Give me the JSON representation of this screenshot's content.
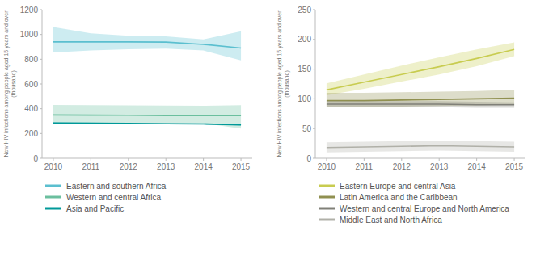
{
  "chart_data": [
    {
      "type": "line",
      "y_label": "New HIV infections among people aged 15 years and over\n(thousand)",
      "x": [
        2010,
        2011,
        2012,
        2013,
        2014,
        2015
      ],
      "xlim": [
        2009.7,
        2015.3
      ],
      "xticks": [
        2010,
        2011,
        2012,
        2013,
        2014,
        2015
      ],
      "ylim": [
        0,
        1200
      ],
      "yticks": [
        0,
        200,
        400,
        600,
        800,
        1000,
        1200
      ],
      "grid": false,
      "legend": "bottom",
      "series": [
        {
          "name": "Eastern and southern Africa",
          "color": "#5bbfcf",
          "values": [
            940,
            940,
            940,
            938,
            920,
            890
          ],
          "upper": [
            1060,
            1010,
            990,
            985,
            960,
            1025
          ],
          "lower": [
            855,
            870,
            880,
            885,
            870,
            790
          ]
        },
        {
          "name": "Western and central Africa",
          "color": "#6bbf9e",
          "values": [
            350,
            348,
            347,
            345,
            344,
            345
          ],
          "upper": [
            430,
            428,
            427,
            425,
            424,
            428
          ],
          "lower": [
            285,
            285,
            285,
            282,
            282,
            240
          ]
        },
        {
          "name": "Asia and Pacific",
          "color": "#009999",
          "values": [
            285,
            283,
            281,
            279,
            277,
            270
          ],
          "upper": [
            290,
            288,
            286,
            284,
            282,
            275
          ],
          "lower": [
            280,
            278,
            276,
            274,
            272,
            265
          ]
        }
      ]
    },
    {
      "type": "line",
      "y_label": "New HIV infections among people aged 15 years and over\n(thousand)",
      "x": [
        2010,
        2011,
        2012,
        2013,
        2014,
        2015
      ],
      "xlim": [
        2009.7,
        2015.3
      ],
      "xticks": [
        2010,
        2011,
        2012,
        2013,
        2014,
        2015
      ],
      "ylim": [
        0,
        250
      ],
      "yticks": [
        0,
        50,
        100,
        150,
        200,
        250
      ],
      "grid": false,
      "legend": "bottom",
      "series": [
        {
          "name": "Eastern Europe and central Asia",
          "color": "#c8cc50",
          "values": [
            115,
            128,
            141,
            154,
            168,
            183
          ],
          "upper": [
            126,
            141,
            156,
            170,
            183,
            195
          ],
          "lower": [
            106,
            117,
            129,
            141,
            155,
            172
          ]
        },
        {
          "name": "Latin America and the Caribbean",
          "color": "#909050",
          "values": [
            97,
            97,
            98,
            99,
            100,
            101
          ],
          "upper": [
            110,
            110,
            111,
            112,
            113,
            115
          ],
          "lower": [
            86,
            86,
            87,
            88,
            89,
            90
          ]
        },
        {
          "name": "Western and central Europe and North America",
          "color": "#808078",
          "values": [
            91,
            91,
            91,
            91,
            90,
            90
          ],
          "upper": [
            96,
            96,
            96,
            96,
            95,
            94
          ],
          "lower": [
            86,
            86,
            86,
            86,
            85,
            85
          ]
        },
        {
          "name": "Middle East and North Africa",
          "color": "#b0b0a8",
          "values": [
            18,
            19,
            20,
            21,
            20,
            19
          ],
          "upper": [
            27,
            28,
            29,
            30,
            29,
            28
          ],
          "lower": [
            10,
            11,
            12,
            13,
            12,
            11
          ]
        }
      ]
    }
  ]
}
